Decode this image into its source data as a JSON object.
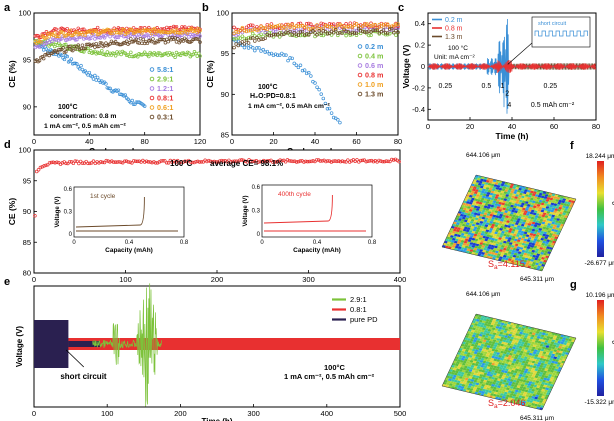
{
  "chart_data": [
    {
      "id": "a",
      "panel_letter": "a",
      "type": "scatter",
      "xlabel": "Cycle number",
      "ylabel": "CE (%)",
      "xlim": [
        0,
        120
      ],
      "ylim": [
        87,
        100
      ],
      "xticks": [
        0,
        40,
        80,
        120
      ],
      "yticks": [
        90,
        95,
        100
      ],
      "annotations": [
        "100°C",
        "concentration: 0.8 m",
        "1 mA cm⁻², 0.5 mAh cm⁻²"
      ],
      "series": [
        {
          "name": "5.8:1",
          "color": "#3a8fd6",
          "x": [
            2,
            5,
            10,
            15,
            20,
            25,
            30,
            35,
            40,
            45,
            50,
            55,
            60,
            65,
            70,
            75,
            80
          ],
          "y": [
            97.0,
            96.5,
            96.0,
            95.8,
            95.5,
            95.0,
            94.6,
            94.0,
            93.5,
            93.0,
            92.6,
            92.0,
            91.6,
            91.2,
            90.6,
            90.3,
            90.0
          ]
        },
        {
          "name": "2.9:1",
          "color": "#7cc23a",
          "x": [
            2,
            10,
            20,
            30,
            40,
            50,
            60,
            70,
            80,
            90,
            100,
            110,
            120
          ],
          "y": [
            97.0,
            96.8,
            96.5,
            96.3,
            96.0,
            95.8,
            95.7,
            95.6,
            95.6,
            95.5,
            95.5,
            95.6,
            95.6
          ]
        },
        {
          "name": "1.2:1",
          "color": "#a77be0",
          "x": [
            2,
            10,
            20,
            30,
            40,
            50,
            60,
            70,
            80,
            90,
            100,
            110,
            120
          ],
          "y": [
            96.5,
            97.0,
            97.3,
            97.4,
            97.5,
            97.5,
            97.6,
            97.6,
            97.6,
            97.7,
            97.7,
            97.7,
            97.7
          ]
        },
        {
          "name": "0.8:1",
          "color": "#e83030",
          "x": [
            2,
            10,
            20,
            30,
            40,
            50,
            60,
            70,
            80,
            90,
            100,
            110,
            120
          ],
          "y": [
            97.5,
            98.0,
            98.1,
            98.1,
            98.2,
            98.2,
            98.2,
            98.2,
            98.3,
            98.3,
            98.3,
            98.3,
            98.3
          ]
        },
        {
          "name": "0.6:1",
          "color": "#f0a020",
          "x": [
            2,
            10,
            20,
            30,
            40,
            50,
            60,
            70,
            80,
            90,
            100,
            110,
            120
          ],
          "y": [
            97.0,
            97.6,
            97.8,
            97.9,
            97.9,
            98.0,
            98.0,
            98.0,
            98.0,
            98.1,
            98.1,
            98.1,
            98.1
          ]
        },
        {
          "name": "0.3:1",
          "color": "#6b4a2a",
          "x": [
            2,
            10,
            20,
            30,
            40,
            50,
            60,
            70,
            80,
            90,
            100,
            110,
            120
          ],
          "y": [
            95.0,
            95.5,
            96.0,
            96.3,
            96.5,
            96.7,
            96.8,
            97.0,
            97.0,
            97.0,
            97.1,
            97.1,
            97.1
          ]
        }
      ]
    },
    {
      "id": "b",
      "panel_letter": "b",
      "type": "scatter",
      "xlabel": "Cycle number",
      "ylabel": "CE (%)",
      "xlim": [
        0,
        80
      ],
      "ylim": [
        85,
        100
      ],
      "xticks": [
        0,
        20,
        40,
        60,
        80
      ],
      "yticks": [
        85,
        90,
        95,
        100
      ],
      "annotations": [
        "100°C",
        "H₂O:PD=0.8:1",
        "1 mA cm⁻², 0.5 mAh cm⁻²"
      ],
      "series": [
        {
          "name": "0.2 m",
          "color": "#3a8fd6",
          "x": [
            2,
            5,
            10,
            15,
            20,
            25,
            30,
            35,
            40,
            43,
            46,
            49,
            52
          ],
          "y": [
            96.5,
            96.0,
            95.7,
            95.3,
            95.0,
            94.7,
            94.0,
            93.0,
            91.5,
            90.0,
            88.5,
            87.3,
            86.5
          ]
        },
        {
          "name": "0.4 m",
          "color": "#7cc23a",
          "x": [
            2,
            10,
            20,
            30,
            40,
            50,
            60,
            70,
            80
          ],
          "y": [
            97.0,
            97.2,
            97.3,
            97.4,
            97.4,
            97.5,
            97.5,
            97.5,
            97.5
          ]
        },
        {
          "name": "0.6 m",
          "color": "#a77be0",
          "x": [
            2,
            10,
            20,
            30,
            40,
            50,
            60,
            70,
            80
          ],
          "y": [
            97.5,
            97.8,
            98.0,
            98.0,
            98.1,
            98.1,
            98.1,
            98.1,
            98.1
          ]
        },
        {
          "name": "0.8 m",
          "color": "#e83030",
          "x": [
            2,
            10,
            20,
            30,
            40,
            50,
            60,
            70,
            80
          ],
          "y": [
            98.0,
            98.3,
            98.4,
            98.4,
            98.5,
            98.5,
            98.5,
            98.5,
            98.5
          ]
        },
        {
          "name": "1.0 m",
          "color": "#f0a020",
          "x": [
            2,
            10,
            20,
            30,
            40,
            50,
            60,
            70,
            80
          ],
          "y": [
            97.8,
            98.1,
            98.2,
            98.3,
            98.3,
            98.3,
            98.4,
            98.4,
            98.4
          ]
        },
        {
          "name": "1.3 m",
          "color": "#6b4a2a",
          "x": [
            2,
            10,
            20,
            30,
            40,
            50,
            60,
            70,
            80
          ],
          "y": [
            96.0,
            96.8,
            97.2,
            97.5,
            97.6,
            97.7,
            97.8,
            97.8,
            97.8
          ]
        }
      ]
    },
    {
      "id": "c",
      "panel_letter": "c",
      "type": "line",
      "xlabel": "Time (h)",
      "ylabel": "Voltage (V)",
      "xlim": [
        0,
        80
      ],
      "ylim": [
        -0.5,
        0.5
      ],
      "xticks": [
        0,
        20,
        40,
        60,
        80
      ],
      "yticks": [
        -0.4,
        -0.2,
        0.0,
        0.2,
        0.4
      ],
      "annotations": [
        "100 °C",
        "Unit: mA cm⁻²",
        "0.25",
        "0.5",
        "1",
        "2",
        "4",
        "0.25",
        "0.5 mAh cm⁻²"
      ],
      "inset_label": "short circuit",
      "series": [
        {
          "name": "0.2 m",
          "color": "#3a8fd6"
        },
        {
          "name": "0.8 m",
          "color": "#e83030"
        },
        {
          "name": "1.3 m",
          "color": "#6b4a2a"
        }
      ]
    },
    {
      "id": "d",
      "panel_letter": "d",
      "type": "scatter",
      "xlabel": "Cycle number",
      "ylabel": "CE (%)",
      "xlim": [
        0,
        400
      ],
      "ylim": [
        80,
        100
      ],
      "xticks": [
        0,
        100,
        200,
        300,
        400
      ],
      "yticks": [
        80,
        85,
        90,
        95,
        100
      ],
      "annotations": [
        "100°C",
        "average CE= 98.1%"
      ],
      "series": [
        {
          "name": "0.8:1",
          "color": "#e83030",
          "x": [
            1,
            3,
            6,
            10,
            15,
            20,
            30,
            40,
            60,
            80,
            100,
            130,
            160,
            200,
            240,
            280,
            320,
            360,
            400
          ],
          "y": [
            89.3,
            96.5,
            97.2,
            97.5,
            97.7,
            97.8,
            97.9,
            98.0,
            98.0,
            98.1,
            98.1,
            98.1,
            98.1,
            98.2,
            98.2,
            98.2,
            98.2,
            98.2,
            98.3
          ]
        }
      ],
      "insets": [
        {
          "title": "1st cycle",
          "color": "#6b4a2a",
          "xlabel": "Capacity (mAh)",
          "ylabel": "Voltage (V)",
          "xticks": [
            0.0,
            0.4,
            0.8
          ],
          "yticks": [
            0.0,
            0.3,
            0.6
          ]
        },
        {
          "title": "400th cycle",
          "color": "#e83030",
          "xlabel": "Capacity (mAh)",
          "ylabel": "Voltage (V)",
          "xticks": [
            0.0,
            0.4,
            0.8
          ],
          "yticks": [
            0.0,
            0.3,
            0.6
          ]
        }
      ]
    },
    {
      "id": "e",
      "panel_letter": "e",
      "type": "line",
      "xlabel": "Time (h)",
      "ylabel": "Voltage (V)",
      "xlim": [
        0,
        500
      ],
      "xticks": [
        0,
        100,
        200,
        300,
        400,
        500
      ],
      "annotations": [
        "short circuit",
        "100°C",
        "1 mA cm⁻², 0.5 mAh cm⁻²"
      ],
      "series": [
        {
          "name": "2.9:1",
          "color": "#7cc23a"
        },
        {
          "name": "0.8:1",
          "color": "#e83030"
        },
        {
          "name": "pure PD",
          "color": "#2a2050"
        }
      ]
    },
    {
      "id": "f",
      "panel_letter": "f",
      "type": "heatmap",
      "x_extent": "645.311 μm",
      "y_extent": "644.106 μm",
      "z_max": "18.244 μm",
      "z_min": "-26.677 μm",
      "colorbar_label": "0",
      "sa": "S",
      "sa_sub": "a",
      "sa_value": "=4.115"
    },
    {
      "id": "g",
      "panel_letter": "g",
      "type": "heatmap",
      "x_extent": "645.311 μm",
      "y_extent": "644.106 μm",
      "z_max": "10.196 μm",
      "z_min": "-15.322 μm",
      "colorbar_label": "0",
      "sa": "S",
      "sa_sub": "a",
      "sa_value": "=2.046"
    }
  ]
}
